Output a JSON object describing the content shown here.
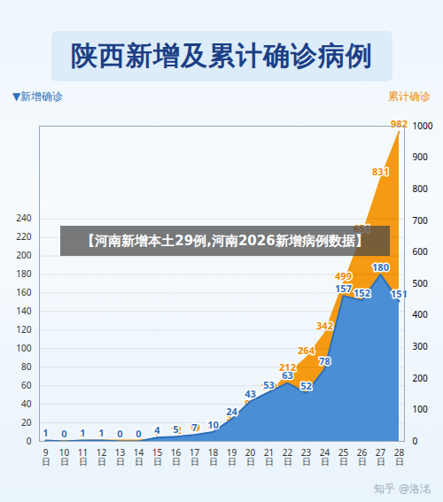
{
  "chart_data": {
    "type": "area",
    "title": "陕西新增及累计确诊病例",
    "ylabel": "▼新增确诊",
    "y2label": "累计确诊",
    "annotation": "【河南新增本土29例,河南2026新增病例数据】",
    "watermark": "知乎 @洛洺",
    "categories": [
      "9日",
      "10日",
      "11日",
      "12日",
      "13日",
      "14日",
      "15日",
      "16日",
      "17日",
      "18日",
      "19日",
      "20日",
      "21日",
      "22日",
      "23日",
      "24日",
      "25日",
      "26日",
      "27日",
      "28日"
    ],
    "series": [
      {
        "name": "累计确诊",
        "color": "#f59a12",
        "axis": "y2",
        "values": [
          1,
          1,
          2,
          3,
          3,
          3,
          7,
          12,
          19,
          29,
          53,
          96,
          149,
          212,
          264,
          342,
          499,
          651,
          831,
          982
        ]
      },
      {
        "name": "新增确诊",
        "color": "#4a8fd6",
        "values": [
          1,
          0,
          1,
          1,
          0,
          0,
          4,
          5,
          7,
          10,
          24,
          43,
          53,
          63,
          52,
          78,
          157,
          152,
          180,
          151
        ]
      }
    ],
    "ylim": [
      0,
      340
    ],
    "yticks": [
      0,
      20,
      40,
      60,
      80,
      100,
      120,
      140,
      160,
      180,
      200,
      220,
      240
    ],
    "y2lim": [
      0,
      1000
    ],
    "y2ticks": [
      0,
      100,
      200,
      300,
      400,
      500,
      600,
      700,
      800,
      900,
      1000
    ],
    "grid": true,
    "data_labels": true
  }
}
